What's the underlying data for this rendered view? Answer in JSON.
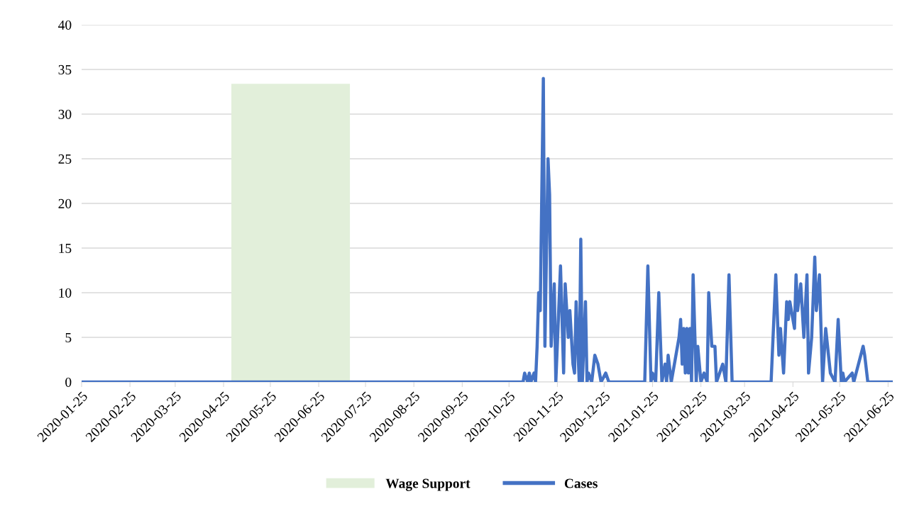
{
  "chart_data": {
    "type": "line",
    "series": [
      {
        "name": "Wage Support",
        "type": "area",
        "color": "#e2efda",
        "x": [
          "2020-04-30",
          "2020-07-15"
        ],
        "values": [
          33.4,
          33.4
        ]
      },
      {
        "name": "Cases",
        "color": "#4472c4",
        "x": [
          "2020-01-25",
          "2020-11-03",
          "2020-11-04",
          "2020-11-06",
          "2020-11-07",
          "2020-11-08",
          "2020-11-10",
          "2020-11-11",
          "2020-11-12",
          "2020-11-13",
          "2020-11-14",
          "2020-11-16",
          "2020-11-17",
          "2020-11-19",
          "2020-11-20",
          "2020-11-21",
          "2020-11-23",
          "2020-11-24",
          "2020-11-27",
          "2020-11-29",
          "2020-11-30",
          "2020-12-02",
          "2020-12-03",
          "2020-12-05",
          "2020-12-06",
          "2020-12-07",
          "2020-12-09",
          "2020-12-10",
          "2020-12-11",
          "2020-12-13",
          "2020-12-14",
          "2020-12-15",
          "2020-12-17",
          "2020-12-19",
          "2020-12-21",
          "2020-12-23",
          "2020-12-26",
          "2020-12-28",
          "2021-01-20",
          "2021-01-22",
          "2021-01-24",
          "2021-01-25",
          "2021-01-27",
          "2021-01-29",
          "2021-01-31",
          "2021-02-02",
          "2021-02-03",
          "2021-02-04",
          "2021-02-06",
          "2021-02-09",
          "2021-02-11",
          "2021-02-12",
          "2021-02-13",
          "2021-02-14",
          "2021-02-15",
          "2021-02-16",
          "2021-02-17",
          "2021-02-18",
          "2021-02-19",
          "2021-02-20",
          "2021-02-22",
          "2021-02-23",
          "2021-02-25",
          "2021-02-27",
          "2021-03-01",
          "2021-03-02",
          "2021-03-04",
          "2021-03-06",
          "2021-03-07",
          "2021-03-11",
          "2021-03-13",
          "2021-03-15",
          "2021-03-17",
          "2021-04-11",
          "2021-04-14",
          "2021-04-16",
          "2021-04-17",
          "2021-04-19",
          "2021-04-21",
          "2021-04-22",
          "2021-04-23",
          "2021-04-26",
          "2021-04-27",
          "2021-04-28",
          "2021-04-30",
          "2021-05-02",
          "2021-05-04",
          "2021-05-05",
          "2021-05-07",
          "2021-05-09",
          "2021-05-10",
          "2021-05-12",
          "2021-05-14",
          "2021-05-16",
          "2021-05-19",
          "2021-05-22",
          "2021-05-24",
          "2021-05-26",
          "2021-05-27",
          "2021-05-28",
          "2021-06-02",
          "2021-06-03",
          "2021-06-09",
          "2021-06-10",
          "2021-06-12",
          "2021-06-28"
        ],
        "values": [
          0,
          0,
          1,
          0,
          1,
          0,
          1,
          0,
          4,
          10,
          8,
          34,
          4,
          25,
          21,
          4,
          11,
          0,
          13,
          1,
          11,
          5,
          8,
          2,
          1,
          9,
          0,
          16,
          0,
          9,
          0,
          1,
          0,
          3,
          2,
          0,
          1,
          0,
          0,
          13,
          0,
          1,
          0,
          10,
          0,
          2,
          0,
          3,
          0,
          3,
          5,
          7,
          2,
          6,
          1,
          6,
          1,
          6,
          0,
          12,
          0,
          4,
          0,
          1,
          0,
          10,
          4,
          4,
          0,
          2,
          0,
          12,
          0,
          0,
          12,
          3,
          6,
          1,
          9,
          7,
          9,
          6,
          12,
          8,
          11,
          5,
          12,
          1,
          5,
          14,
          8,
          12,
          0,
          6,
          1,
          0,
          7,
          0,
          1,
          0,
          1,
          0,
          4,
          3,
          0,
          0
        ]
      }
    ],
    "xlim": [
      "2020-01-25",
      "2021-06-28"
    ],
    "xticks": [
      "2020-01-25",
      "2020-02-25",
      "2020-03-25",
      "2020-04-25",
      "2020-05-25",
      "2020-06-25",
      "2020-07-25",
      "2020-08-25",
      "2020-09-25",
      "2020-10-25",
      "2020-11-25",
      "2020-12-25",
      "2021-01-25",
      "2021-02-25",
      "2021-03-25",
      "2021-04-25",
      "2021-05-25",
      "2021-06-25"
    ],
    "ylim": [
      0,
      40
    ],
    "yticks": [
      0,
      5,
      10,
      15,
      20,
      25,
      30,
      35,
      40
    ],
    "grid": "y",
    "legend": "bottom",
    "line_style": "solid",
    "marker": "none"
  }
}
